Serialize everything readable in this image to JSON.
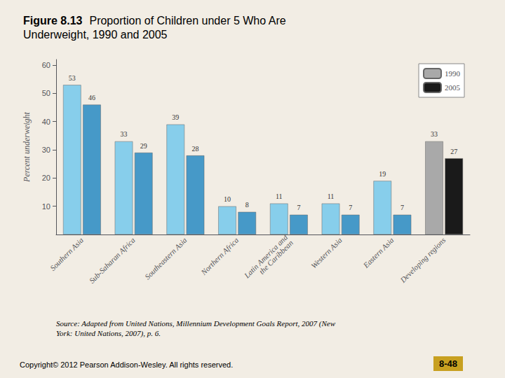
{
  "chart_data": {
    "type": "bar",
    "title": "Figure 8.13",
    "subtitle": "Proportion of Children under 5 Who Are\nUnderweight, 1990 and 2005",
    "categories": [
      "Southern Asia",
      "Sub-Saharan Africa",
      "Southeastern Asia",
      "Northern Africa",
      "Latin America and\nthe Caribbean",
      "Western Asia",
      "Eastern Asia",
      "Developing regions"
    ],
    "series": [
      {
        "name": "1990",
        "color": "#A9A9A9",
        "colors": [
          "#87CEEB",
          "#87CEEB",
          "#87CEEB",
          "#87CEEB",
          "#87CEEB",
          "#87CEEB",
          "#87CEEB",
          "#A9A9A9"
        ],
        "values": [
          53,
          33,
          39,
          10,
          11,
          11,
          19,
          33
        ]
      },
      {
        "name": "2005",
        "color": "#1A1A1A",
        "colors": [
          "#4699C8",
          "#4699C8",
          "#4699C8",
          "#4699C8",
          "#4699C8",
          "#4699C8",
          "#4699C8",
          "#1A1A1A"
        ],
        "values": [
          46,
          29,
          28,
          8,
          7,
          7,
          7,
          27
        ]
      }
    ],
    "ylabel": "Percent underweight",
    "ylim": [
      0,
      62
    ],
    "yticks": [
      10,
      20,
      30,
      40,
      50,
      60
    ],
    "grid": false,
    "legend": "upper right",
    "data_labels": true,
    "annotations": [
      "Source: Adapted from United Nations, Millennium Development Goals Report, 2007 (New\nYork: United Nations, 2007), p. 6.",
      "Copyright© 2012 Pearson Addison-Wesley. All rights reserved.",
      "8-48"
    ]
  }
}
